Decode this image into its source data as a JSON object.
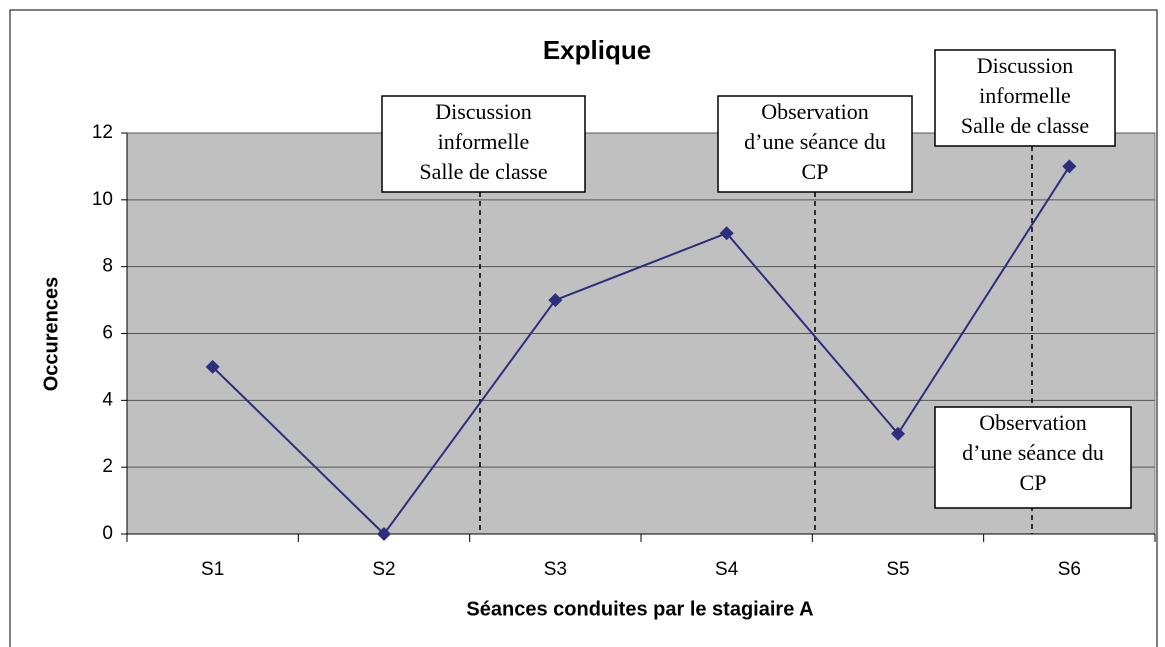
{
  "chart_data": {
    "type": "line",
    "title": "Explique",
    "x_label": "Séances conduites par le stagiaire A",
    "y_label": "Occurences",
    "categories": [
      "S1",
      "S2",
      "S3",
      "S4",
      "S5",
      "S6"
    ],
    "series": [
      {
        "name": "Explique",
        "color": "#2e2e7e",
        "values": [
          5,
          0,
          7,
          9,
          3,
          11
        ]
      }
    ],
    "ylim": [
      0,
      12
    ],
    "yticks": [
      0,
      2,
      4,
      6,
      8,
      10,
      12
    ],
    "grid": true,
    "annotations": [
      {
        "lines": [
          "Discussion",
          "informelle",
          "Salle de classe"
        ]
      },
      {
        "lines": [
          "Observation",
          "d’une séance du",
          "CP"
        ]
      },
      {
        "lines": [
          "Discussion",
          "informelle",
          "Salle de classe"
        ]
      },
      {
        "lines": [
          "Observation",
          "d’une séance du",
          "CP"
        ]
      }
    ]
  }
}
